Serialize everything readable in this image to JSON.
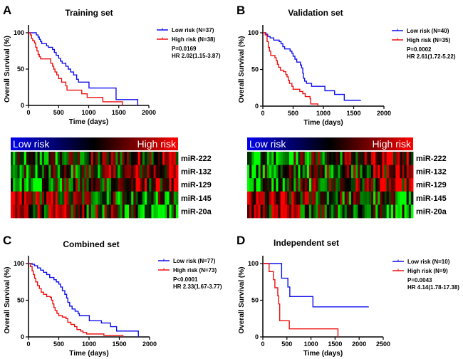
{
  "chart_data": [
    {
      "panel_label": "A",
      "type": "line",
      "title": "Training set",
      "xlabel": "Time (days)",
      "ylabel": "Overall Survival (%)",
      "xlim": [
        0,
        2000
      ],
      "ylim": [
        0,
        100
      ],
      "xticks": [
        0,
        500,
        1000,
        1500,
        2000
      ],
      "yticks": [
        0,
        50,
        100
      ],
      "stats": [
        "P=0.0169",
        "HR 2.02(1.15-3.87)"
      ],
      "series": [
        {
          "name": "Low risk (N=37)",
          "color": "#1010ee",
          "points": [
            [
              0,
              100
            ],
            [
              130,
              97
            ],
            [
              160,
              94
            ],
            [
              180,
              91
            ],
            [
              200,
              88
            ],
            [
              220,
              85
            ],
            [
              300,
              82
            ],
            [
              330,
              80
            ],
            [
              400,
              77
            ],
            [
              430,
              73
            ],
            [
              460,
              69
            ],
            [
              500,
              65
            ],
            [
              530,
              61
            ],
            [
              560,
              58
            ],
            [
              620,
              54
            ],
            [
              660,
              50
            ],
            [
              700,
              46
            ],
            [
              750,
              42
            ],
            [
              800,
              36
            ],
            [
              830,
              32
            ],
            [
              1005,
              24
            ],
            [
              1455,
              8
            ],
            [
              1815,
              0
            ]
          ]
        },
        {
          "name": "High risk (N=38)",
          "color": "#ee1010",
          "points": [
            [
              0,
              100
            ],
            [
              30,
              97
            ],
            [
              50,
              92
            ],
            [
              70,
              89
            ],
            [
              100,
              86
            ],
            [
              120,
              80
            ],
            [
              140,
              75
            ],
            [
              160,
              70
            ],
            [
              180,
              67
            ],
            [
              200,
              64
            ],
            [
              370,
              58
            ],
            [
              400,
              54
            ],
            [
              420,
              50
            ],
            [
              440,
              46
            ],
            [
              470,
              42
            ],
            [
              500,
              37
            ],
            [
              550,
              32
            ],
            [
              620,
              27
            ],
            [
              640,
              21
            ],
            [
              885,
              16
            ],
            [
              975,
              11
            ],
            [
              1235,
              5
            ],
            [
              1560,
              0
            ]
          ]
        }
      ]
    },
    {
      "panel_label": "B",
      "type": "line",
      "title": "Validation set",
      "xlabel": "Time (days)",
      "ylabel": "Overall Survival (%)",
      "xlim": [
        0,
        2000
      ],
      "ylim": [
        0,
        100
      ],
      "xticks": [
        0,
        500,
        1000,
        1500,
        2000
      ],
      "yticks": [
        0,
        50,
        100
      ],
      "stats": [
        "P=0.0002",
        "HR 2.61(1.72-5.22)"
      ],
      "series": [
        {
          "name": "Low risk (N=40)",
          "color": "#1010ee",
          "points": [
            [
              0,
              100
            ],
            [
              50,
              98
            ],
            [
              80,
              95
            ],
            [
              120,
              93
            ],
            [
              180,
              90
            ],
            [
              270,
              88
            ],
            [
              300,
              85
            ],
            [
              330,
              81
            ],
            [
              360,
              78
            ],
            [
              450,
              75
            ],
            [
              480,
              72
            ],
            [
              500,
              68
            ],
            [
              530,
              64
            ],
            [
              560,
              60
            ],
            [
              620,
              56
            ],
            [
              640,
              52
            ],
            [
              660,
              45
            ],
            [
              670,
              38
            ],
            [
              690,
              34
            ],
            [
              720,
              31
            ],
            [
              805,
              27
            ],
            [
              1025,
              21
            ],
            [
              1185,
              16
            ],
            [
              1345,
              8
            ],
            [
              1620,
              8
            ]
          ]
        },
        {
          "name": "High risk (N=35)",
          "color": "#ee1010",
          "points": [
            [
              0,
              100
            ],
            [
              40,
              97
            ],
            [
              70,
              88
            ],
            [
              90,
              80
            ],
            [
              110,
              75
            ],
            [
              130,
              69
            ],
            [
              200,
              66
            ],
            [
              220,
              62
            ],
            [
              240,
              57
            ],
            [
              260,
              53
            ],
            [
              290,
              49
            ],
            [
              340,
              47
            ],
            [
              380,
              43
            ],
            [
              400,
              40
            ],
            [
              420,
              35
            ],
            [
              440,
              31
            ],
            [
              480,
              27
            ],
            [
              500,
              23
            ],
            [
              610,
              20
            ],
            [
              660,
              17
            ],
            [
              700,
              13
            ],
            [
              780,
              10
            ],
            [
              790,
              3
            ],
            [
              910,
              0
            ]
          ]
        }
      ]
    },
    {
      "panel_label": "C",
      "type": "line",
      "title": "Combined set",
      "xlabel": "Time (days)",
      "ylabel": "Overall Survival (%)",
      "xlim": [
        0,
        2000
      ],
      "ylim": [
        0,
        100
      ],
      "xticks": [
        0,
        500,
        1000,
        1500,
        2000
      ],
      "yticks": [
        0,
        50,
        100
      ],
      "stats": [
        "P<0.0001",
        "HR 2.33(1.67-3.77)"
      ],
      "series": [
        {
          "name": "Low risk (N=77)",
          "color": "#1010ee",
          "points": [
            [
              0,
              100
            ],
            [
              60,
              99
            ],
            [
              100,
              97
            ],
            [
              150,
              94
            ],
            [
              200,
              91
            ],
            [
              250,
              88
            ],
            [
              300,
              85
            ],
            [
              350,
              81
            ],
            [
              420,
              78
            ],
            [
              460,
              75
            ],
            [
              500,
              72
            ],
            [
              530,
              68
            ],
            [
              560,
              63
            ],
            [
              600,
              58
            ],
            [
              630,
              53
            ],
            [
              650,
              47
            ],
            [
              680,
              42
            ],
            [
              720,
              38
            ],
            [
              770,
              35
            ],
            [
              820,
              32
            ],
            [
              840,
              29
            ],
            [
              1005,
              22
            ],
            [
              1205,
              19
            ],
            [
              1355,
              14
            ],
            [
              1455,
              8
            ],
            [
              1815,
              0
            ]
          ]
        },
        {
          "name": "High risk (N=73)",
          "color": "#ee1010",
          "points": [
            [
              0,
              100
            ],
            [
              30,
              96
            ],
            [
              60,
              90
            ],
            [
              80,
              85
            ],
            [
              100,
              80
            ],
            [
              120,
              75
            ],
            [
              150,
              70
            ],
            [
              180,
              66
            ],
            [
              210,
              61
            ],
            [
              250,
              58
            ],
            [
              300,
              55
            ],
            [
              360,
              54
            ],
            [
              380,
              50
            ],
            [
              400,
              45
            ],
            [
              420,
              40
            ],
            [
              440,
              36
            ],
            [
              470,
              32
            ],
            [
              500,
              29
            ],
            [
              560,
              27
            ],
            [
              620,
              25
            ],
            [
              650,
              20
            ],
            [
              700,
              17
            ],
            [
              760,
              14
            ],
            [
              800,
              10
            ],
            [
              860,
              8
            ],
            [
              900,
              6
            ],
            [
              960,
              4
            ],
            [
              1245,
              2
            ],
            [
              1560,
              0
            ]
          ]
        }
      ]
    },
    {
      "panel_label": "D",
      "type": "line",
      "title": "Independent set",
      "xlabel": "Time (days)",
      "ylabel": "Overall Survival (%)",
      "xlim": [
        0,
        2500
      ],
      "ylim": [
        0,
        100
      ],
      "xticks": [
        0,
        500,
        1000,
        1500,
        2000,
        2500
      ],
      "yticks": [
        0,
        50,
        100
      ],
      "stats": [
        "P=0.0043",
        "HR 4.14(1.78-17.38)"
      ],
      "series": [
        {
          "name": "Low risk (N=10)",
          "color": "#1010ee",
          "points": [
            [
              0,
              100
            ],
            [
              390,
              80
            ],
            [
              520,
              68
            ],
            [
              560,
              55
            ],
            [
              1040,
              41
            ],
            [
              2200,
              41
            ]
          ]
        },
        {
          "name": "High risk (N=9)",
          "color": "#ee1010",
          "points": [
            [
              0,
              100
            ],
            [
              130,
              89
            ],
            [
              220,
              78
            ],
            [
              250,
              67
            ],
            [
              310,
              56
            ],
            [
              330,
              45
            ],
            [
              350,
              22
            ],
            [
              550,
              11
            ],
            [
              1560,
              0
            ]
          ]
        }
      ]
    }
  ],
  "heatmaps": [
    {
      "low_label": "Low risk",
      "high_label": "High risk",
      "rows": [
        "miR-222",
        "miR-132",
        "miR-129",
        "miR-145",
        "miR-20a"
      ]
    },
    {
      "low_label": "Low risk",
      "high_label": "High risk",
      "rows": [
        "miR-222",
        "miR-132",
        "miR-129",
        "miR-145",
        "miR-20a"
      ]
    }
  ],
  "colors": {
    "low_risk": "#1010ee",
    "high_risk": "#ee1010",
    "heat_up": "#ff0000",
    "heat_down": "#00ff00"
  }
}
